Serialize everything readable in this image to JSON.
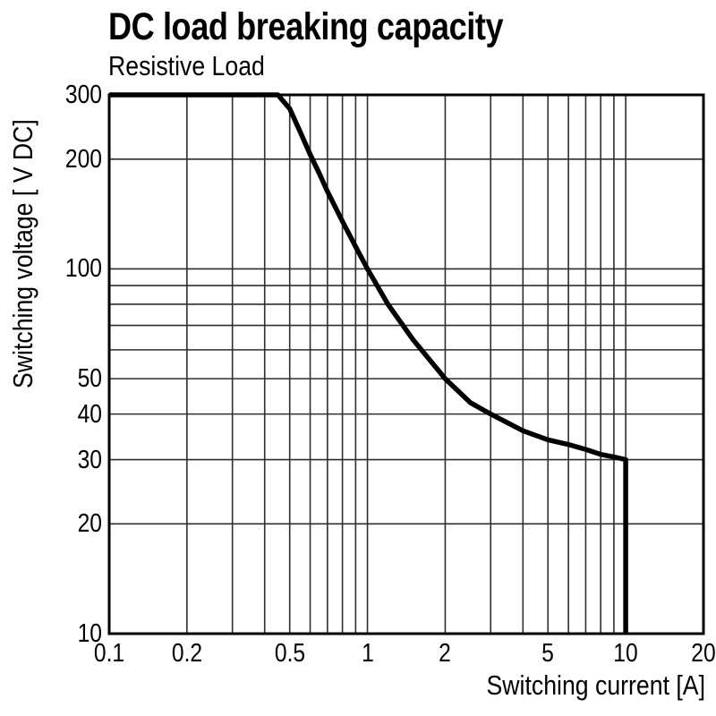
{
  "chart_data": {
    "type": "line",
    "title": "DC load breaking capacity",
    "subtitle": "Resistive Load",
    "xlabel": "Switching current [A]",
    "ylabel": "Switching voltage [ V DC]",
    "x_scale": "log",
    "y_scale": "log",
    "xlim": [
      0.1,
      20
    ],
    "ylim": [
      10,
      300
    ],
    "grid": true,
    "legend": false,
    "x_ticks": [
      {
        "value": 0.1,
        "label": "0.1"
      },
      {
        "value": 0.2,
        "label": "0.2"
      },
      {
        "value": 0.5,
        "label": "0.5"
      },
      {
        "value": 1,
        "label": "1"
      },
      {
        "value": 2,
        "label": "2"
      },
      {
        "value": 5,
        "label": "5"
      },
      {
        "value": 10,
        "label": "10"
      },
      {
        "value": 20,
        "label": "20"
      }
    ],
    "y_ticks": [
      {
        "value": 300,
        "label": "300"
      },
      {
        "value": 200,
        "label": "200"
      },
      {
        "value": 100,
        "label": "100"
      },
      {
        "value": 50,
        "label": "50"
      },
      {
        "value": 40,
        "label": "40"
      },
      {
        "value": 30,
        "label": "30"
      },
      {
        "value": 20,
        "label": "20"
      },
      {
        "value": 10,
        "label": "10"
      }
    ],
    "x_gridlines": [
      0.2,
      0.3,
      0.4,
      0.5,
      0.6,
      0.7,
      0.8,
      0.9,
      1,
      2,
      3,
      4,
      5,
      6,
      7,
      8,
      9,
      10
    ],
    "y_gridlines": [
      20,
      30,
      40,
      50,
      60,
      70,
      80,
      90,
      100,
      200
    ],
    "series": [
      {
        "color": "#000000",
        "points": [
          [
            0.1,
            300
          ],
          [
            0.45,
            300
          ],
          [
            0.5,
            275
          ],
          [
            0.55,
            237
          ],
          [
            0.6,
            206
          ],
          [
            0.65,
            183
          ],
          [
            0.7,
            163
          ],
          [
            0.8,
            135
          ],
          [
            0.9,
            115
          ],
          [
            1,
            100
          ],
          [
            1.2,
            80
          ],
          [
            1.5,
            64
          ],
          [
            2,
            50
          ],
          [
            2.5,
            43
          ],
          [
            3,
            40
          ],
          [
            4,
            36
          ],
          [
            5,
            34
          ],
          [
            6,
            33
          ],
          [
            7,
            32
          ],
          [
            8,
            31
          ],
          [
            9,
            30.5
          ],
          [
            10,
            30
          ],
          [
            10,
            10
          ]
        ]
      }
    ],
    "colors": {
      "background": "#ffffff",
      "text": "#000000",
      "grid": "#2e2e33",
      "axis": "#000000",
      "curve": "#000000"
    }
  }
}
